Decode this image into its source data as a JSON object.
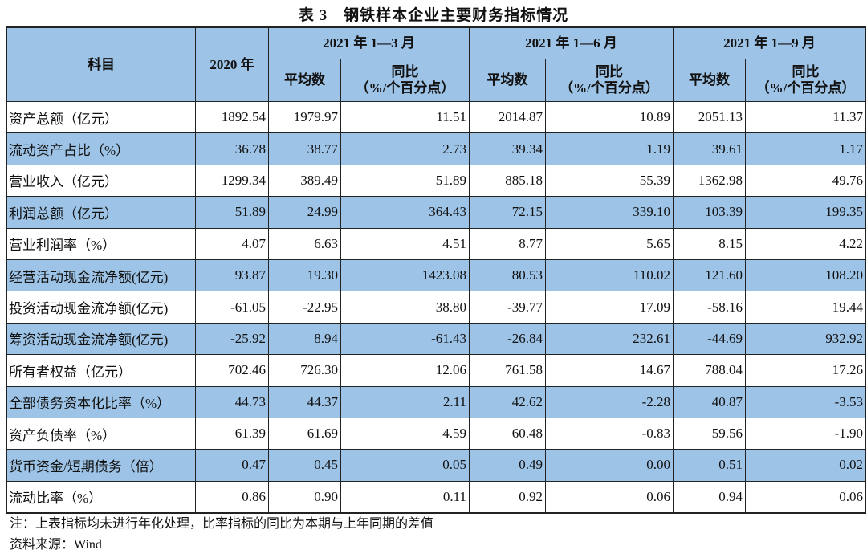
{
  "title": "表 3　钢铁样本企业主要财务指标情况",
  "header": {
    "item": "科目",
    "year2020": "2020 年",
    "periods": [
      "2021 年 1—3 月",
      "2021 年 1—6 月",
      "2021 年 1—9 月"
    ],
    "avg": "平均数",
    "yoy_line1": "同比",
    "yoy_line2": "（%/个百分点）"
  },
  "highlight_color": "#9DC3E6",
  "rows": [
    {
      "name": "资产总额（亿元）",
      "values": [
        "1892.54",
        "1979.97",
        "11.51",
        "2014.87",
        "10.89",
        "2051.13",
        "11.37"
      ],
      "shaded": false
    },
    {
      "name": "流动资产占比（%）",
      "values": [
        "36.78",
        "38.77",
        "2.73",
        "39.34",
        "1.19",
        "39.61",
        "1.17"
      ],
      "shaded": true
    },
    {
      "name": "营业收入（亿元）",
      "values": [
        "1299.34",
        "389.49",
        "51.89",
        "885.18",
        "55.39",
        "1362.98",
        "49.76"
      ],
      "shaded": false
    },
    {
      "name": "利润总额（亿元）",
      "values": [
        "51.89",
        "24.99",
        "364.43",
        "72.15",
        "339.10",
        "103.39",
        "199.35"
      ],
      "shaded": true
    },
    {
      "name": "营业利润率（%）",
      "values": [
        "4.07",
        "6.63",
        "4.51",
        "8.77",
        "5.65",
        "8.15",
        "4.22"
      ],
      "shaded": false
    },
    {
      "name": "经营活动现金流净额(亿元)",
      "values": [
        "93.87",
        "19.30",
        "1423.08",
        "80.53",
        "110.02",
        "121.60",
        "108.20"
      ],
      "shaded": true
    },
    {
      "name": "投资活动现金流净额(亿元)",
      "values": [
        "-61.05",
        "-22.95",
        "38.80",
        "-39.77",
        "17.09",
        "-58.16",
        "19.44"
      ],
      "shaded": false
    },
    {
      "name": "筹资活动现金流净额(亿元)",
      "values": [
        "-25.92",
        "8.94",
        "-61.43",
        "-26.84",
        "232.61",
        "-44.69",
        "932.92"
      ],
      "shaded": true
    },
    {
      "name": "所有者权益（亿元）",
      "values": [
        "702.46",
        "726.30",
        "12.06",
        "761.58",
        "14.67",
        "788.04",
        "17.26"
      ],
      "shaded": false
    },
    {
      "name": "全部债务资本化比率（%）",
      "values": [
        "44.73",
        "44.37",
        "2.11",
        "42.62",
        "-2.28",
        "40.87",
        "-3.53"
      ],
      "shaded": true
    },
    {
      "name": "资产负债率（%）",
      "values": [
        "61.39",
        "61.69",
        "4.59",
        "60.48",
        "-0.83",
        "59.56",
        "-1.90"
      ],
      "shaded": false
    },
    {
      "name": "货币资金/短期债务（倍）",
      "values": [
        "0.47",
        "0.45",
        "0.05",
        "0.49",
        "0.00",
        "0.51",
        "0.02"
      ],
      "shaded": true
    },
    {
      "name": "流动比率（%）",
      "values": [
        "0.86",
        "0.90",
        "0.11",
        "0.92",
        "0.06",
        "0.94",
        "0.06"
      ],
      "shaded": false
    }
  ],
  "notes": {
    "note": "注：上表指标均未进行年化处理，比率指标的同比为本期与上年同期的差值",
    "source": "资料来源：Wind"
  }
}
